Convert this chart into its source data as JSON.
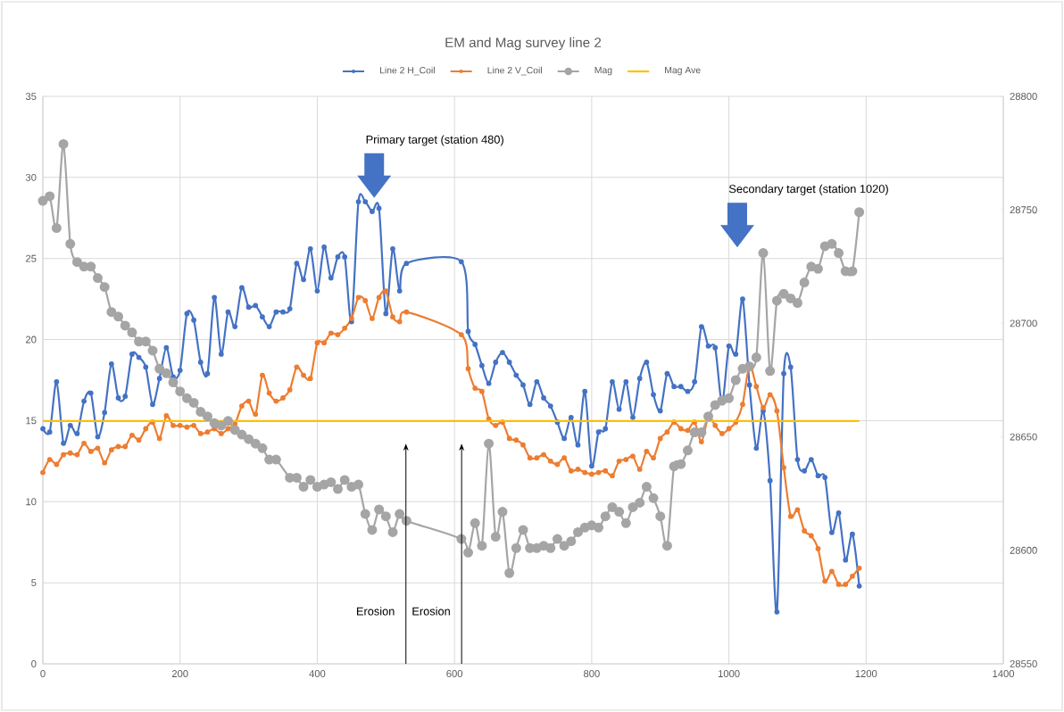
{
  "chart_data": {
    "type": "line",
    "title": "EM and Mag survey line 2",
    "legend": "top",
    "grid": true,
    "xlim": [
      0,
      1400
    ],
    "xticks": [
      0,
      200,
      400,
      600,
      800,
      1000,
      1200,
      1400
    ],
    "ylim": [
      0,
      35
    ],
    "yticks": [
      0,
      5,
      10,
      15,
      20,
      25,
      30,
      35
    ],
    "y2lim": [
      28550,
      28800
    ],
    "y2ticks": [
      28550,
      28600,
      28650,
      28700,
      28750,
      28800
    ],
    "series": [
      {
        "name": "Line 2 H_Coil",
        "color": "#4472c4",
        "marker": "circle",
        "x": [
          0,
          10,
          20,
          30,
          40,
          50,
          60,
          70,
          80,
          90,
          100,
          110,
          120,
          130,
          140,
          150,
          160,
          170,
          180,
          190,
          200,
          210,
          220,
          230,
          240,
          250,
          260,
          270,
          280,
          290,
          300,
          310,
          320,
          330,
          340,
          350,
          360,
          370,
          380,
          390,
          400,
          410,
          420,
          430,
          440,
          450,
          460,
          470,
          480,
          490,
          500,
          510,
          520,
          530,
          610,
          620,
          630,
          640,
          650,
          660,
          670,
          680,
          690,
          700,
          710,
          720,
          730,
          740,
          750,
          760,
          770,
          780,
          790,
          800,
          810,
          820,
          830,
          840,
          850,
          860,
          870,
          880,
          890,
          900,
          910,
          920,
          930,
          940,
          950,
          960,
          970,
          980,
          990,
          1000,
          1010,
          1020,
          1030,
          1040,
          1050,
          1060,
          1070,
          1080,
          1090,
          1100,
          1110,
          1120,
          1130,
          1140,
          1150,
          1160,
          1170,
          1180,
          1190
        ],
        "values": [
          14.5,
          14.3,
          17.4,
          13.6,
          14.7,
          14.2,
          16.2,
          16.7,
          14.0,
          15.5,
          18.5,
          16.4,
          16.5,
          19.1,
          18.9,
          18.3,
          16.0,
          17.6,
          19.5,
          17.7,
          18.1,
          21.6,
          21.2,
          18.6,
          17.9,
          22.6,
          19.1,
          21.7,
          20.8,
          23.2,
          22.0,
          22.1,
          21.4,
          20.8,
          21.7,
          21.7,
          21.9,
          24.7,
          23.7,
          25.6,
          23.0,
          25.7,
          23.8,
          25.1,
          25.1,
          21.1,
          28.5,
          28.5,
          27.9,
          28.1,
          21.6,
          25.6,
          23.0,
          24.7,
          24.8,
          20.5,
          19.7,
          18.4,
          17.3,
          18.6,
          19.2,
          18.6,
          17.8,
          17.2,
          16.0,
          17.4,
          16.4,
          15.9,
          14.9,
          13.9,
          15.2,
          13.5,
          16.8,
          12.2,
          14.3,
          14.5,
          17.4,
          15.7,
          17.4,
          15.2,
          17.6,
          18.6,
          16.6,
          15.6,
          17.9,
          17.1,
          17.1,
          16.8,
          17.4,
          20.8,
          19.6,
          19.5,
          16.1,
          19.6,
          19.1,
          22.5,
          17.2,
          13.3,
          15.6,
          11.3,
          3.2,
          17.9,
          18.3,
          12.6,
          11.9,
          12.6,
          11.6,
          11.5,
          8.1,
          9.3,
          6.4,
          8.0,
          4.8
        ]
      },
      {
        "name": "Line 2 V_Coil",
        "color": "#ed7d31",
        "marker": "circle",
        "x": [
          0,
          10,
          20,
          30,
          40,
          50,
          60,
          70,
          80,
          90,
          100,
          110,
          120,
          130,
          140,
          150,
          160,
          170,
          180,
          190,
          200,
          210,
          220,
          230,
          240,
          250,
          260,
          270,
          280,
          290,
          300,
          310,
          320,
          330,
          340,
          350,
          360,
          370,
          380,
          390,
          400,
          410,
          420,
          430,
          440,
          450,
          460,
          470,
          480,
          490,
          500,
          510,
          520,
          530,
          610,
          620,
          630,
          640,
          650,
          660,
          670,
          680,
          690,
          700,
          710,
          720,
          730,
          740,
          750,
          760,
          770,
          780,
          790,
          800,
          810,
          820,
          830,
          840,
          850,
          860,
          870,
          880,
          890,
          900,
          910,
          920,
          930,
          940,
          950,
          960,
          970,
          980,
          990,
          1000,
          1010,
          1020,
          1030,
          1040,
          1050,
          1060,
          1070,
          1080,
          1090,
          1100,
          1110,
          1120,
          1130,
          1140,
          1150,
          1160,
          1170,
          1180,
          1190
        ],
        "values": [
          11.8,
          12.6,
          12.3,
          12.9,
          13.0,
          12.9,
          13.6,
          13.1,
          13.3,
          12.4,
          13.2,
          13.4,
          13.4,
          14.1,
          13.8,
          14.5,
          14.9,
          13.9,
          15.3,
          14.7,
          14.7,
          14.6,
          14.7,
          14.2,
          14.3,
          14.5,
          14.2,
          14.5,
          14.8,
          15.9,
          16.2,
          15.4,
          17.8,
          16.7,
          16.2,
          16.4,
          16.9,
          18.3,
          17.8,
          17.6,
          19.8,
          19.8,
          20.4,
          20.3,
          20.7,
          21.3,
          22.6,
          22.4,
          21.3,
          22.6,
          23.0,
          21.4,
          21.1,
          21.7,
          20.3,
          18.2,
          17.0,
          16.8,
          15.1,
          14.7,
          14.9,
          13.9,
          13.8,
          13.5,
          12.7,
          12.7,
          12.9,
          12.5,
          12.3,
          12.7,
          11.9,
          12.0,
          11.8,
          11.7,
          11.8,
          11.9,
          11.6,
          12.5,
          12.6,
          12.8,
          12.0,
          13.1,
          12.7,
          13.9,
          14.3,
          14.9,
          14.5,
          14.4,
          14.9,
          13.7,
          15.2,
          14.7,
          14.2,
          14.5,
          14.9,
          16.0,
          18.4,
          17.1,
          15.8,
          16.6,
          15.6,
          12.1,
          9.1,
          9.5,
          8.2,
          7.9,
          7.1,
          5.1,
          5.7,
          4.9,
          4.9,
          5.4,
          5.9
        ]
      },
      {
        "name": "Mag",
        "color": "#a5a5a5",
        "marker": "circle",
        "axis": "y2",
        "x": [
          0,
          10,
          20,
          30,
          40,
          50,
          60,
          70,
          80,
          90,
          100,
          110,
          120,
          130,
          140,
          150,
          160,
          170,
          180,
          190,
          200,
          210,
          220,
          230,
          240,
          250,
          260,
          270,
          280,
          290,
          300,
          310,
          320,
          330,
          340,
          360,
          370,
          380,
          390,
          400,
          410,
          420,
          430,
          440,
          450,
          460,
          470,
          480,
          490,
          500,
          510,
          520,
          530,
          610,
          620,
          630,
          640,
          650,
          660,
          670,
          680,
          690,
          700,
          710,
          720,
          730,
          740,
          750,
          760,
          770,
          780,
          790,
          800,
          810,
          820,
          830,
          840,
          850,
          860,
          870,
          880,
          890,
          900,
          910,
          920,
          930,
          940,
          950,
          960,
          970,
          980,
          990,
          1000,
          1010,
          1020,
          1030,
          1040,
          1050,
          1060,
          1070,
          1080,
          1090,
          1100,
          1110,
          1120,
          1130,
          1140,
          1150,
          1160,
          1170,
          1180,
          1190
        ],
        "values": [
          28754,
          28756,
          28742,
          28779,
          28735,
          28727,
          28725,
          28725,
          28720,
          28716,
          28705,
          28703,
          28699,
          28696,
          28692,
          28692,
          28688,
          28680,
          28678,
          28674,
          28670,
          28667,
          28665,
          28661,
          28659,
          28656,
          28655,
          28657,
          28653,
          28651,
          28649,
          28647,
          28645,
          28640,
          28640,
          28632,
          28632,
          28628,
          28631,
          28628,
          28629,
          28630,
          28627,
          28631,
          28628,
          28629,
          28616,
          28609,
          28618,
          28615,
          28608,
          28616,
          28613,
          28605,
          28599,
          28612,
          28602,
          28647,
          28606,
          28617,
          28590,
          28601,
          28609,
          28601,
          28601,
          28602,
          28601,
          28605,
          28602,
          28604,
          28608,
          28610,
          28611,
          28610,
          28615,
          28619,
          28617,
          28612,
          28619,
          28621,
          28628,
          28623,
          28615,
          28602,
          28637,
          28638,
          28644,
          28652,
          28652,
          28659,
          28664,
          28666,
          28667,
          28675,
          28680,
          28681,
          28685,
          28731,
          28679,
          28710,
          28713,
          28711,
          28709,
          28718,
          28725,
          28724,
          28734,
          28735,
          28731,
          28723,
          28723,
          28749
        ]
      },
      {
        "name": "Mag Ave",
        "color": "#ffc000",
        "marker": "none",
        "axis": "y2",
        "x": [
          0,
          1190
        ],
        "values": [
          28657,
          28657
        ]
      }
    ],
    "annotations": [
      "Primary target (station 480)",
      "Secondary target (station 1020)",
      "Erosion",
      "Erosion"
    ]
  }
}
